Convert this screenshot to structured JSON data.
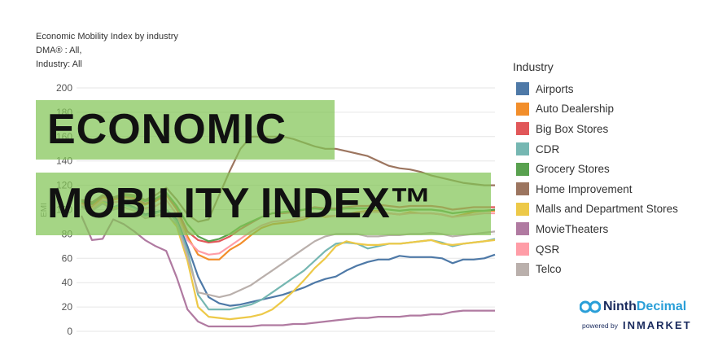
{
  "header": {
    "lines": [
      "Economic Mobility Index by industry",
      "DMA® : All,",
      "Industry: All"
    ]
  },
  "banner": {
    "line1": "ECONOMIC",
    "line2": "MOBILITY INDEX™"
  },
  "brand": {
    "name_part1": "Ninth",
    "name_part2": "Decimal",
    "powered_by": "powered by",
    "partner": "INMARKET"
  },
  "chart_data": {
    "type": "line",
    "title": "Economic Mobility Index by industry",
    "ylabel": "EMI",
    "xlabel": "",
    "ylim": [
      0,
      200
    ],
    "yticks": [
      0,
      20,
      40,
      60,
      80,
      100,
      120,
      140,
      160,
      180,
      200
    ],
    "grid": true,
    "legend_title": "Industry",
    "legend_position": "right",
    "x": [
      1,
      2,
      3,
      4,
      5,
      6,
      7,
      8,
      9,
      10,
      11,
      12,
      13,
      14,
      15,
      16,
      17,
      18,
      19,
      20,
      21,
      22,
      23,
      24,
      25,
      26,
      27,
      28,
      29,
      30,
      31,
      32,
      33,
      34,
      35,
      36,
      37,
      38,
      39,
      40
    ],
    "series": [
      {
        "name": "Airports",
        "color": "#4e79a7",
        "values": [
          104,
          101,
          108,
          102,
          105,
          102,
          96,
          98,
          100,
          92,
          70,
          45,
          28,
          23,
          21,
          22,
          24,
          26,
          28,
          30,
          33,
          36,
          40,
          43,
          45,
          50,
          54,
          57,
          59,
          59,
          62,
          61,
          61,
          61,
          60,
          56,
          59,
          59,
          60,
          63
        ]
      },
      {
        "name": "Auto Dealership",
        "color": "#f28e2b",
        "values": [
          105,
          102,
          110,
          108,
          110,
          109,
          104,
          107,
          112,
          100,
          78,
          63,
          59,
          59,
          67,
          72,
          79,
          85,
          88,
          89,
          90,
          92,
          96,
          94,
          95,
          96,
          98,
          99,
          99,
          97,
          96,
          98,
          97,
          97,
          96,
          94,
          96,
          98,
          99,
          99
        ]
      },
      {
        "name": "Big Box Stores",
        "color": "#e15759",
        "values": [
          106,
          104,
          111,
          109,
          111,
          110,
          105,
          108,
          113,
          101,
          82,
          75,
          73,
          74,
          78,
          84,
          89,
          94,
          97,
          97,
          98,
          100,
          102,
          101,
          101,
          102,
          103,
          103,
          104,
          103,
          102,
          103,
          103,
          103,
          102,
          100,
          101,
          102,
          102,
          102
        ]
      },
      {
        "name": "CDR",
        "color": "#76b7b2",
        "values": [
          103,
          100,
          107,
          102,
          104,
          101,
          95,
          97,
          100,
          90,
          66,
          30,
          18,
          18,
          18,
          20,
          22,
          26,
          32,
          38,
          44,
          50,
          58,
          66,
          72,
          73,
          72,
          68,
          70,
          72,
          72,
          73,
          74,
          75,
          73,
          70,
          72,
          73,
          74,
          76
        ]
      },
      {
        "name": "Grocery Stores",
        "color": "#59a14f",
        "values": [
          107,
          105,
          112,
          110,
          112,
          111,
          107,
          109,
          114,
          103,
          88,
          78,
          74,
          76,
          80,
          86,
          90,
          94,
          97,
          98,
          99,
          100,
          101,
          100,
          100,
          101,
          101,
          101,
          101,
          100,
          99,
          100,
          100,
          100,
          99,
          97,
          98,
          99,
          99,
          100
        ]
      },
      {
        "name": "Home Improvement",
        "color": "#9c755f",
        "values": [
          108,
          106,
          112,
          110,
          113,
          112,
          108,
          112,
          118,
          108,
          96,
          90,
          92,
          112,
          132,
          150,
          160,
          160,
          160,
          160,
          158,
          155,
          152,
          150,
          150,
          148,
          146,
          144,
          140,
          136,
          134,
          133,
          131,
          128,
          126,
          124,
          122,
          121,
          120,
          120
        ]
      },
      {
        "name": "Malls and Department Stores",
        "color": "#edc948",
        "values": [
          102,
          99,
          106,
          101,
          102,
          99,
          93,
          95,
          97,
          86,
          58,
          20,
          12,
          11,
          10,
          11,
          12,
          14,
          18,
          25,
          33,
          42,
          52,
          60,
          70,
          74,
          72,
          71,
          71,
          72,
          72,
          73,
          74,
          75,
          72,
          71,
          72,
          73,
          74,
          75
        ]
      },
      {
        "name": "MovieTheaters",
        "color": "#b07aa1",
        "values": [
          95,
          75,
          76,
          92,
          88,
          82,
          75,
          70,
          66,
          44,
          18,
          8,
          4,
          4,
          4,
          4,
          4,
          5,
          5,
          5,
          6,
          6,
          7,
          8,
          9,
          10,
          11,
          11,
          12,
          12,
          12,
          13,
          13,
          14,
          14,
          16,
          17,
          17,
          17,
          17
        ]
      },
      {
        "name": "QSR",
        "color": "#ff9da7",
        "values": [
          104,
          101,
          108,
          106,
          107,
          106,
          101,
          103,
          108,
          96,
          75,
          66,
          63,
          64,
          70,
          76,
          82,
          87,
          90,
          91,
          92,
          94,
          96,
          95,
          95,
          96,
          97,
          98,
          98,
          97,
          96,
          97,
          97,
          97,
          96,
          94,
          95,
          96,
          97,
          97
        ]
      },
      {
        "name": "Telco",
        "color": "#bab0ac",
        "values": [
          102,
          99,
          105,
          100,
          102,
          99,
          93,
          95,
          96,
          88,
          62,
          32,
          30,
          28,
          30,
          34,
          38,
          44,
          50,
          56,
          62,
          68,
          74,
          78,
          80,
          80,
          80,
          78,
          78,
          79,
          79,
          80,
          80,
          81,
          80,
          78,
          79,
          80,
          81,
          82
        ]
      }
    ]
  }
}
